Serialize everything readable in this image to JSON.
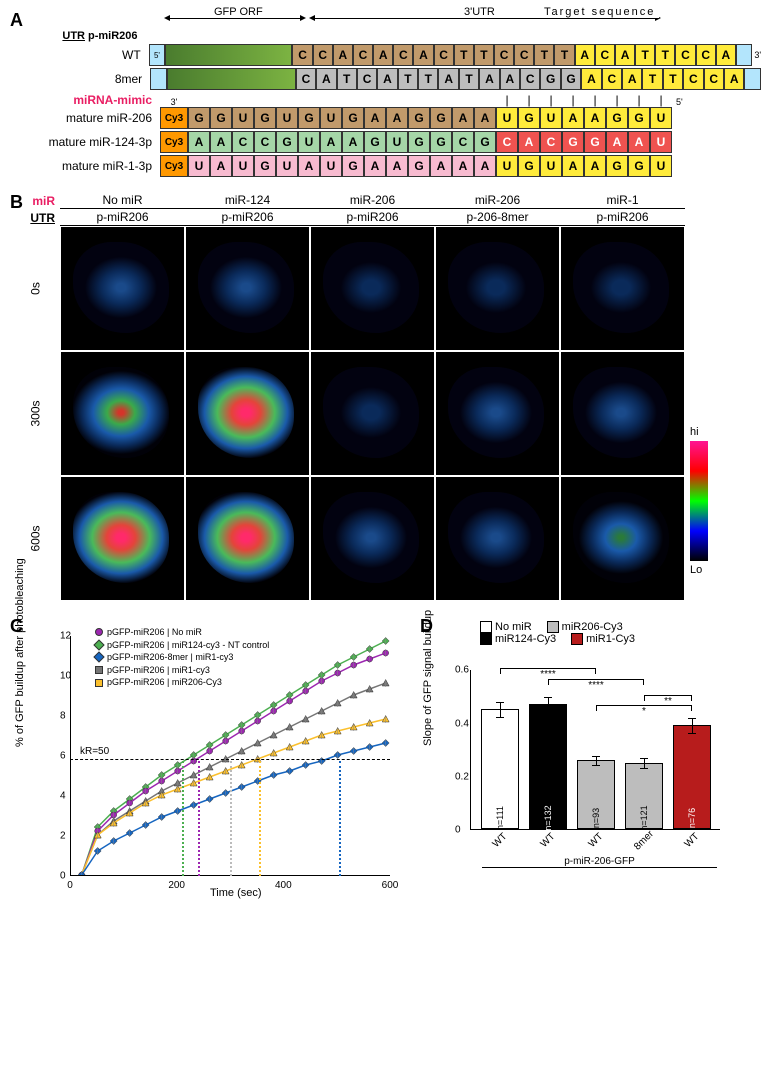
{
  "panelA": {
    "header": {
      "gfp": "GFP ORF",
      "utr3": "3'UTR",
      "target": "Target sequence"
    },
    "labels": {
      "utr": "UTR",
      "pmir": "p-miR206",
      "five": "5'",
      "three": "3'",
      "mimic": "miRNA-mimic"
    },
    "rows": {
      "wt": {
        "label": "WT",
        "seq1": "CCACACACTTCCTT",
        "seq2": "ACATTCCA",
        "c1": "t-brown",
        "c2": "t-yellow"
      },
      "mer8": {
        "label": "8mer",
        "seq1": "CATCATTATAACGG",
        "seq2": "ACATTCCA",
        "c1": "t-gray",
        "c2": "t-yellow"
      },
      "mir206": {
        "label": "mature miR-206",
        "seq1": "GGUGUGUGAAGGAA",
        "seq2": "UGUAAGGU",
        "c1": "t-brown",
        "c2": "t-yellow"
      },
      "mir124": {
        "label": "mature miR-124-3p",
        "seq1": "AACCGUAAGUGGCG",
        "seq2": "CACGGAAU",
        "c1": "t-green",
        "c2": "t-red"
      },
      "mir1": {
        "label": "mature miR-1-3p",
        "seq1": "UAUGUAUGAAGAAA",
        "seq2": "UGUAAGGU",
        "c1": "t-pink",
        "c2": "t-yellow"
      }
    },
    "cy3": "Cy3"
  },
  "panelB": {
    "mirLabel": "miR",
    "utrLabel": "UTR",
    "cols": [
      {
        "mir": "No miR",
        "utr": "p-miR206"
      },
      {
        "mir": "miR-124",
        "utr": "p-miR206"
      },
      {
        "mir": "miR-206",
        "utr": "p-miR206"
      },
      {
        "mir": "miR-206",
        "utr": "p-206-8mer"
      },
      {
        "mir": "miR-1",
        "utr": "p-miR206"
      }
    ],
    "times": [
      "0s",
      "300s",
      "600s"
    ],
    "hi": "hi",
    "lo": "Lo",
    "intensity": [
      [
        0.15,
        0.18,
        0.05,
        0.08,
        0.06
      ],
      [
        0.55,
        0.65,
        0.1,
        0.12,
        0.12
      ],
      [
        0.85,
        0.9,
        0.14,
        0.18,
        0.22
      ]
    ]
  },
  "panelC": {
    "ylabel": "% of GFP buildup after photobleaching",
    "xlabel": "Time (sec)",
    "xlim": [
      0,
      600
    ],
    "xticks": [
      0,
      200,
      400,
      600
    ],
    "ylim": [
      0,
      12
    ],
    "yticks": [
      0,
      2,
      4,
      6,
      8,
      10,
      12
    ],
    "kR": {
      "label": "kR=50",
      "y": 5.8
    },
    "legend": [
      {
        "label": "pGFP-miR206 | No miR",
        "color": "#9c27b0",
        "shape": "circle"
      },
      {
        "label": "pGFP-miR206 | miR124-cy3 - NT control",
        "color": "#4caf50",
        "shape": "diamond"
      },
      {
        "label": "pGFP-miR206-8mer | miR1-cy3",
        "color": "#1565c0",
        "shape": "diamond"
      },
      {
        "label": "pGFP-miR206 | miR1-cy3",
        "color": "#757575",
        "shape": "triangle"
      },
      {
        "label": "pGFP-miR206 | miR206-Cy3",
        "color": "#fbc02d",
        "shape": "triangle"
      }
    ],
    "vdashes": [
      {
        "x": 210,
        "color": "#4caf50"
      },
      {
        "x": 240,
        "color": "#9c27b0"
      },
      {
        "x": 300,
        "color": "#bbb"
      },
      {
        "x": 355,
        "color": "#fbc02d"
      },
      {
        "x": 505,
        "color": "#1565c0"
      }
    ],
    "series": {
      "x": [
        20,
        50,
        80,
        110,
        140,
        170,
        200,
        230,
        260,
        290,
        320,
        350,
        380,
        410,
        440,
        470,
        500,
        530,
        560,
        590
      ],
      "nomir": [
        0,
        2.2,
        3.0,
        3.6,
        4.2,
        4.7,
        5.2,
        5.7,
        6.2,
        6.7,
        7.2,
        7.7,
        8.2,
        8.7,
        9.2,
        9.7,
        10.1,
        10.5,
        10.8,
        11.1
      ],
      "mir124": [
        0,
        2.4,
        3.2,
        3.8,
        4.4,
        5.0,
        5.5,
        6.0,
        6.5,
        7.0,
        7.5,
        8.0,
        8.5,
        9.0,
        9.5,
        10.0,
        10.5,
        10.9,
        11.3,
        11.7
      ],
      "mir1_8": [
        0,
        1.2,
        1.7,
        2.1,
        2.5,
        2.9,
        3.2,
        3.5,
        3.8,
        4.1,
        4.4,
        4.7,
        5.0,
        5.2,
        5.5,
        5.7,
        6.0,
        6.2,
        6.4,
        6.6
      ],
      "mir1": [
        0,
        2.0,
        2.7,
        3.2,
        3.7,
        4.2,
        4.6,
        5.0,
        5.4,
        5.8,
        6.2,
        6.6,
        7.0,
        7.4,
        7.8,
        8.2,
        8.6,
        9.0,
        9.3,
        9.6
      ],
      "mir206": [
        0,
        2.0,
        2.6,
        3.1,
        3.6,
        4.0,
        4.3,
        4.6,
        4.9,
        5.2,
        5.5,
        5.8,
        6.1,
        6.4,
        6.7,
        7.0,
        7.2,
        7.4,
        7.6,
        7.8
      ]
    }
  },
  "panelD": {
    "ylabel": "Slope of GFP signal buildup",
    "ylim": [
      0,
      0.6
    ],
    "yticks": [
      "0",
      "0.2",
      "0.4",
      "0.6"
    ],
    "legend": [
      {
        "label": "No miR",
        "color": "#ffffff"
      },
      {
        "label": "miR206-Cy3",
        "color": "#bdbdbd"
      },
      {
        "label": "miR124-Cy3",
        "color": "#000000"
      },
      {
        "label": "miR1-Cy3",
        "color": "#b71c1c"
      }
    ],
    "bars": [
      {
        "x": "WT",
        "val": 0.45,
        "err": 0.03,
        "n": "n=111",
        "fill": "#ffffff",
        "tc": "#000"
      },
      {
        "x": "WT",
        "val": 0.47,
        "err": 0.03,
        "n": "n=132",
        "fill": "#000000",
        "tc": "#fff"
      },
      {
        "x": "WT",
        "val": 0.26,
        "err": 0.02,
        "n": "n=93",
        "fill": "#bdbdbd",
        "tc": "#000"
      },
      {
        "x": "8mer",
        "val": 0.25,
        "err": 0.02,
        "n": "n=121",
        "fill": "#bdbdbd",
        "tc": "#000"
      },
      {
        "x": "WT",
        "val": 0.39,
        "err": 0.03,
        "n": "n=76",
        "fill": "#b71c1c",
        "tc": "#fff"
      }
    ],
    "sig": [
      {
        "from": 0,
        "to": 2,
        "y": 0.56,
        "label": "****"
      },
      {
        "from": 1,
        "to": 3,
        "y": 0.52,
        "label": "****"
      },
      {
        "from": 3,
        "to": 4,
        "y": 0.46,
        "label": "**"
      },
      {
        "from": 2,
        "to": 4,
        "y": 0.42,
        "label": "*"
      }
    ],
    "bracket": "p-miR-206-GFP"
  }
}
